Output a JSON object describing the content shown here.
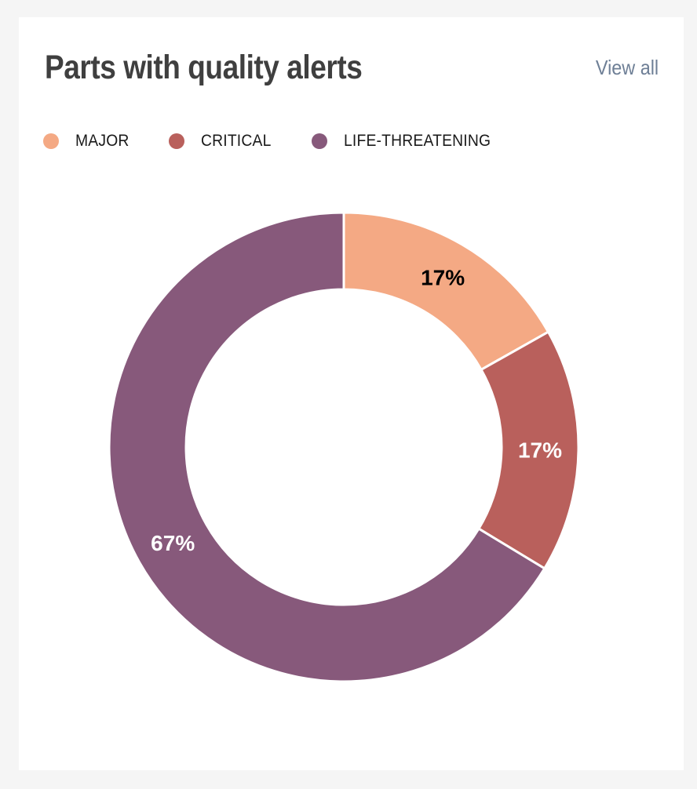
{
  "card": {
    "title": "Parts with quality alerts",
    "view_all_label": "View all"
  },
  "chart_data": {
    "type": "pie",
    "style": "donut",
    "title": "Parts with quality alerts",
    "legend_placement": "top-left",
    "slices": [
      {
        "label": "MAJOR",
        "value": 17,
        "display": "17%",
        "color": "#f4a984",
        "label_color": "#000000"
      },
      {
        "label": "CRITICAL",
        "value": 17,
        "display": "17%",
        "color": "#b9605c",
        "label_color": "#ffffff"
      },
      {
        "label": "LIFE-THREATENING",
        "value": 67,
        "display": "67%",
        "color": "#87597b",
        "label_color": "#ffffff"
      }
    ]
  }
}
